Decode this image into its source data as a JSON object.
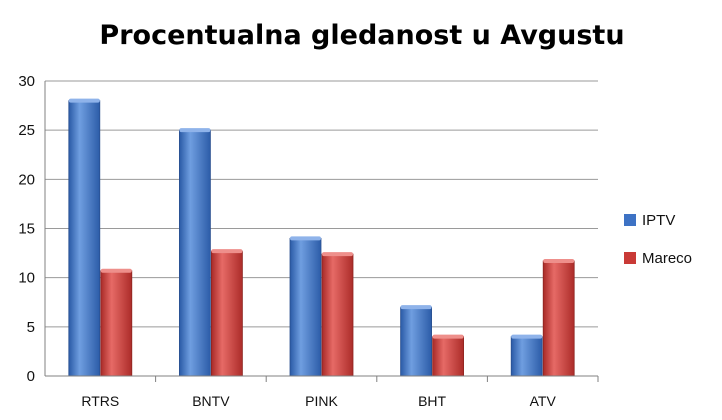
{
  "chart_data": {
    "type": "bar",
    "title": "Procentualna gledanost u Avgustu",
    "categories": [
      "RTRS",
      "BNTV",
      "PINK",
      "BHT",
      "ATV"
    ],
    "series": [
      {
        "name": "IPTV",
        "values": [
          28,
          25,
          14,
          7,
          4
        ],
        "color": "#3d72c4"
      },
      {
        "name": "Mareco",
        "values": [
          10.7,
          12.7,
          12.4,
          4,
          11.7
        ],
        "color": "#c93a36"
      }
    ],
    "ylim": [
      0,
      30
    ],
    "yticks": [
      0,
      5,
      10,
      15,
      20,
      25,
      30
    ],
    "grid": true,
    "legend": "right"
  }
}
